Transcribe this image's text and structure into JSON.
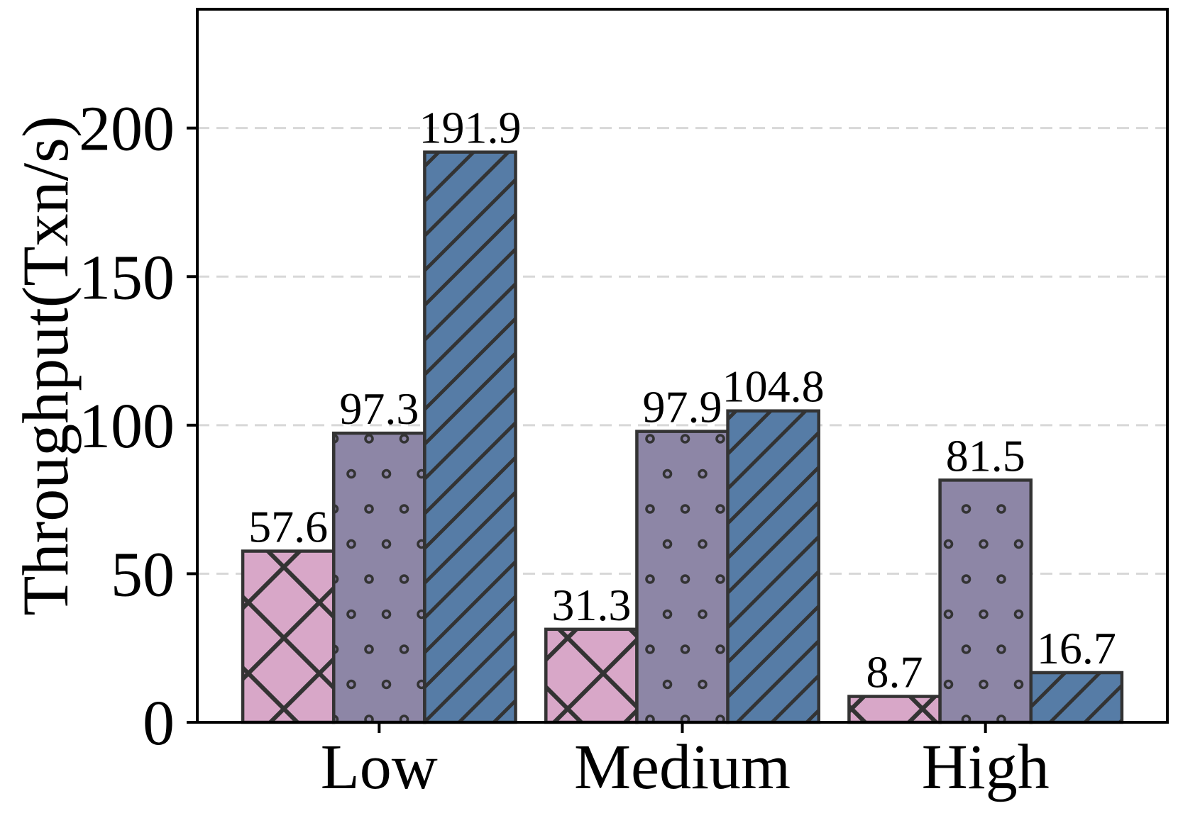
{
  "chart_data": {
    "type": "bar",
    "title": "",
    "xlabel": "",
    "ylabel": "Throughput(Txn/s)",
    "categories": [
      "Low",
      "Medium",
      "High"
    ],
    "series": [
      {
        "name": "pink-crosshatch-bars",
        "fill": "#d8a7c8",
        "hatch": "x",
        "values": [
          57.6,
          31.3,
          8.7
        ]
      },
      {
        "name": "purple-dots-bars",
        "fill": "#8d86a6",
        "hatch": "o",
        "values": [
          97.3,
          97.9,
          81.5
        ]
      },
      {
        "name": "blue-diagonal-bars",
        "fill": "#567ca6",
        "hatch": "/",
        "values": [
          191.9,
          104.8,
          16.7
        ]
      }
    ],
    "bar_value_labels": [
      [
        "57.6",
        "31.3",
        "8.7"
      ],
      [
        "97.3",
        "97.9",
        "81.5"
      ],
      [
        "191.9",
        "104.8",
        "16.7"
      ]
    ],
    "yticks": [
      0,
      50,
      100,
      150,
      200
    ],
    "ytick_labels": [
      "0",
      "50",
      "100",
      "150",
      "200"
    ],
    "ylim": [
      0,
      240
    ],
    "grid": {
      "axis": "y",
      "style": "dashed",
      "color": "#d8d8d8"
    },
    "legend": "none",
    "bar_edge_color": "#333333",
    "hatch_color": "#333333"
  }
}
